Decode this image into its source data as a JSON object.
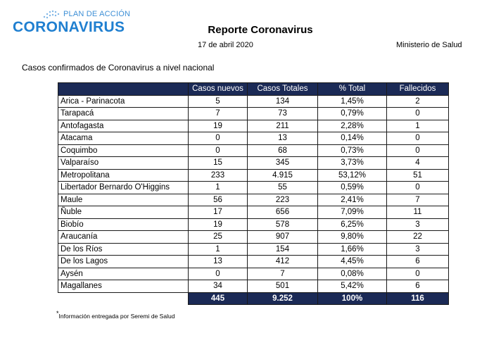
{
  "logo": {
    "top_text": "PLAN DE ACCIÓN",
    "main_text": "CORONAVIRUS",
    "color": "#1f7fd0"
  },
  "header": {
    "title": "Reporte Coronavirus",
    "date": "17 de abril 2020",
    "ministry": "Ministerio de Salud"
  },
  "subtitle": "Casos confirmados de Coronavirus a nivel nacional",
  "table": {
    "columns": [
      "",
      "Casos nuevos",
      "Casos Totales",
      "% Total",
      "Fallecidos"
    ],
    "rows": [
      [
        "Arica - Parinacota",
        "5",
        "134",
        "1,45%",
        "2"
      ],
      [
        "Tarapacá",
        "7",
        "73",
        "0,79%",
        "0"
      ],
      [
        "Antofagasta",
        "19",
        "211",
        "2,28%",
        "1"
      ],
      [
        "Atacama",
        "0",
        "13",
        "0,14%",
        "0"
      ],
      [
        "Coquimbo",
        "0",
        "68",
        "0,73%",
        "0"
      ],
      [
        "Valparaíso",
        "15",
        "345",
        "3,73%",
        "4"
      ],
      [
        "Metropolitana",
        "233",
        "4.915",
        "53,12%",
        "51"
      ],
      [
        "Libertador Bernardo O'Higgins",
        "1",
        "55",
        "0,59%",
        "0"
      ],
      [
        "Maule",
        "56",
        "223",
        "2,41%",
        "7"
      ],
      [
        "Ñuble",
        "17",
        "656",
        "7,09%",
        "11"
      ],
      [
        "Biobío",
        "19",
        "578",
        "6,25%",
        "3"
      ],
      [
        "Araucanía",
        "25",
        "907",
        "9,80%",
        "22"
      ],
      [
        "De los Ríos",
        "1",
        "154",
        "1,66%",
        "3"
      ],
      [
        "De los Lagos",
        "13",
        "412",
        "4,45%",
        "6"
      ],
      [
        "Aysén",
        "0",
        "7",
        "0,08%",
        "0"
      ],
      [
        "Magallanes",
        "34",
        "501",
        "5,42%",
        "6"
      ]
    ],
    "totals": [
      "445",
      "9.252",
      "100%",
      "116"
    ],
    "header_color": "#1b2a56"
  },
  "footnote": {
    "marker": "*",
    "text": "Información entregada por Seremi de Salud"
  }
}
